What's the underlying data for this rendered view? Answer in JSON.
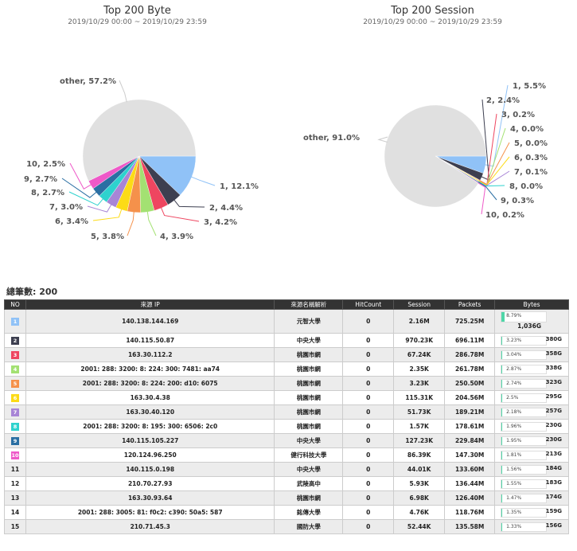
{
  "chart_data": [
    {
      "type": "pie",
      "title": "Top 200 Byte",
      "subtitle": "2019/10/29 00:00 ~ 2019/10/29 23:59",
      "slices": [
        {
          "label": "1, 12.1%",
          "value": 12.1,
          "color": "#90c2f7"
        },
        {
          "label": "2, 4.4%",
          "value": 4.4,
          "color": "#3d3f50"
        },
        {
          "label": "3, 4.2%",
          "value": 4.2,
          "color": "#ee4660"
        },
        {
          "label": "4, 3.9%",
          "value": 3.9,
          "color": "#a3e172"
        },
        {
          "label": "5, 3.8%",
          "value": 3.8,
          "color": "#f5914b"
        },
        {
          "label": "6, 3.4%",
          "value": 3.4,
          "color": "#fcdb16"
        },
        {
          "label": "7, 3.0%",
          "value": 3.0,
          "color": "#a885d6"
        },
        {
          "label": "8, 2.7%",
          "value": 2.7,
          "color": "#2ed2ce"
        },
        {
          "label": "9, 2.7%",
          "value": 2.7,
          "color": "#2a6fa3"
        },
        {
          "label": "10, 2.5%",
          "value": 2.5,
          "color": "#ee59c8"
        },
        {
          "label": "other, 57.2%",
          "value": 57.2,
          "color": "#e0e0e0"
        }
      ]
    },
    {
      "type": "pie",
      "title": "Top 200 Session",
      "subtitle": "2019/10/29 00:00 ~ 2019/10/29 23:59",
      "slices": [
        {
          "label": "1, 5.5%",
          "value": 5.5,
          "color": "#90c2f7"
        },
        {
          "label": "2, 2.4%",
          "value": 2.4,
          "color": "#3d3f50"
        },
        {
          "label": "3, 0.2%",
          "value": 0.2,
          "color": "#ee4660"
        },
        {
          "label": "4, 0.0%",
          "value": 0.0,
          "color": "#a3e172"
        },
        {
          "label": "5, 0.0%",
          "value": 0.0,
          "color": "#f5914b"
        },
        {
          "label": "6, 0.3%",
          "value": 0.3,
          "color": "#fcdb16"
        },
        {
          "label": "7, 0.1%",
          "value": 0.1,
          "color": "#a885d6"
        },
        {
          "label": "8, 0.0%",
          "value": 0.0,
          "color": "#2ed2ce"
        },
        {
          "label": "9, 0.3%",
          "value": 0.3,
          "color": "#2a6fa3"
        },
        {
          "label": "10, 0.2%",
          "value": 0.2,
          "color": "#ee59c8"
        },
        {
          "label": "other, 91.0%",
          "value": 91.0,
          "color": "#e0e0e0"
        }
      ]
    }
  ],
  "total_label": "總筆數: 200",
  "table": {
    "headers": [
      "NO",
      "來源 IP",
      "來源名稱解析",
      "HitCount",
      "Session",
      "Packets",
      "Bytes"
    ],
    "rows": [
      {
        "no": "1",
        "ip": "140.138.144.169",
        "name": "元智大學",
        "hit": "0",
        "session": "2.16M",
        "packets": "725.25M",
        "pct": "8.79%",
        "frac": 0.0879,
        "bytes": "1,036G",
        "color": "#90c2f7"
      },
      {
        "no": "2",
        "ip": "140.115.50.87",
        "name": "中央大學",
        "hit": "0",
        "session": "970.23K",
        "packets": "696.11M",
        "pct": "3.23%",
        "frac": 0.0323,
        "bytes": "380G",
        "color": "#3d3f50"
      },
      {
        "no": "3",
        "ip": "163.30.112.2",
        "name": "桃園市網",
        "hit": "0",
        "session": "67.24K",
        "packets": "286.78M",
        "pct": "3.04%",
        "frac": 0.0304,
        "bytes": "358G",
        "color": "#ee4660"
      },
      {
        "no": "4",
        "ip": "2001: 288: 3200: 8: 224: 300: 7481: aa74",
        "name": "桃園市網",
        "hit": "0",
        "session": "2.35K",
        "packets": "261.78M",
        "pct": "2.87%",
        "frac": 0.0287,
        "bytes": "338G",
        "color": "#a3e172"
      },
      {
        "no": "5",
        "ip": "2001: 288: 3200: 8: 224: 200: d10: 6075",
        "name": "桃園市網",
        "hit": "0",
        "session": "3.23K",
        "packets": "250.50M",
        "pct": "2.74%",
        "frac": 0.0274,
        "bytes": "323G",
        "color": "#f5914b"
      },
      {
        "no": "6",
        "ip": "163.30.4.38",
        "name": "桃園市網",
        "hit": "0",
        "session": "115.31K",
        "packets": "204.56M",
        "pct": "2.5%",
        "frac": 0.025,
        "bytes": "295G",
        "color": "#fcdb16"
      },
      {
        "no": "7",
        "ip": "163.30.40.120",
        "name": "桃園市網",
        "hit": "0",
        "session": "51.73K",
        "packets": "189.21M",
        "pct": "2.18%",
        "frac": 0.0218,
        "bytes": "257G",
        "color": "#a885d6"
      },
      {
        "no": "8",
        "ip": "2001: 288: 3200: 8: 195: 300: 6506: 2c0",
        "name": "桃園市網",
        "hit": "0",
        "session": "1.57K",
        "packets": "178.61M",
        "pct": "1.96%",
        "frac": 0.0196,
        "bytes": "230G",
        "color": "#2ed2ce"
      },
      {
        "no": "9",
        "ip": "140.115.105.227",
        "name": "中央大學",
        "hit": "0",
        "session": "127.23K",
        "packets": "229.84M",
        "pct": "1.95%",
        "frac": 0.0195,
        "bytes": "230G",
        "color": "#2a6fa3"
      },
      {
        "no": "10",
        "ip": "120.124.96.250",
        "name": "健行科技大學",
        "hit": "0",
        "session": "86.39K",
        "packets": "147.30M",
        "pct": "1.81%",
        "frac": 0.0181,
        "bytes": "213G",
        "color": "#ee59c8"
      },
      {
        "no": "11",
        "ip": "140.115.0.198",
        "name": "中央大學",
        "hit": "0",
        "session": "44.01K",
        "packets": "133.60M",
        "pct": "1.56%",
        "frac": 0.0156,
        "bytes": "184G",
        "color": ""
      },
      {
        "no": "12",
        "ip": "210.70.27.93",
        "name": "武陵高中",
        "hit": "0",
        "session": "5.93K",
        "packets": "136.44M",
        "pct": "1.55%",
        "frac": 0.0155,
        "bytes": "183G",
        "color": ""
      },
      {
        "no": "13",
        "ip": "163.30.93.64",
        "name": "桃園市網",
        "hit": "0",
        "session": "6.98K",
        "packets": "126.40M",
        "pct": "1.47%",
        "frac": 0.0147,
        "bytes": "174G",
        "color": ""
      },
      {
        "no": "14",
        "ip": "2001: 288: 3005: 81: f0c2: c390: 50a5: 587",
        "name": "銘傳大學",
        "hit": "0",
        "session": "4.76K",
        "packets": "118.76M",
        "pct": "1.35%",
        "frac": 0.0135,
        "bytes": "159G",
        "color": ""
      },
      {
        "no": "15",
        "ip": "210.71.45.3",
        "name": "國防大學",
        "hit": "0",
        "session": "52.44K",
        "packets": "135.58M",
        "pct": "1.33%",
        "frac": 0.0133,
        "bytes": "156G",
        "color": ""
      }
    ]
  }
}
